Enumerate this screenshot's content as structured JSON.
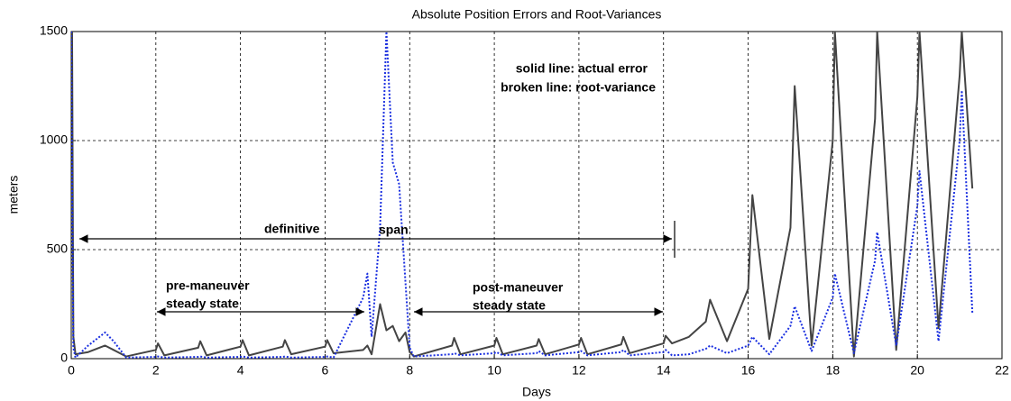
{
  "chart_data": {
    "type": "line",
    "title": "Absolute Position Errors and Root-Variances",
    "x_label": "Days",
    "y_label": "meters",
    "x": [
      0,
      0.02,
      0.05,
      0.1,
      0.4,
      0.8,
      1.0,
      1.3,
      2.0,
      2.05,
      2.2,
      3.0,
      3.05,
      3.2,
      4.0,
      4.05,
      4.2,
      5.0,
      5.05,
      5.2,
      6.0,
      6.05,
      6.2,
      6.9,
      7.0,
      7.1,
      7.3,
      7.45,
      7.6,
      7.75,
      7.9,
      8.0,
      8.1,
      9.0,
      9.05,
      9.2,
      10.0,
      10.05,
      10.2,
      11.0,
      11.05,
      11.2,
      12.0,
      12.05,
      12.2,
      13.0,
      13.05,
      13.2,
      14.0,
      14.05,
      14.2,
      14.6,
      15.0,
      15.1,
      15.5,
      16.0,
      16.1,
      16.5,
      17.0,
      17.1,
      17.5,
      18.0,
      18.05,
      18.5,
      19.0,
      19.05,
      19.5,
      20.0,
      20.05,
      20.5,
      21.0,
      21.05,
      21.3
    ],
    "series": [
      {
        "color": "#444444",
        "dash": false,
        "values": [
          1500,
          1500,
          100,
          20,
          30,
          60,
          40,
          10,
          40,
          70,
          15,
          50,
          80,
          15,
          55,
          85,
          15,
          55,
          85,
          20,
          55,
          85,
          25,
          40,
          60,
          20,
          250,
          130,
          150,
          80,
          120,
          30,
          10,
          60,
          95,
          20,
          60,
          95,
          20,
          60,
          90,
          20,
          65,
          95,
          20,
          65,
          100,
          25,
          70,
          105,
          70,
          100,
          170,
          270,
          80,
          320,
          750,
          90,
          600,
          1250,
          60,
          1000,
          1500,
          10,
          1100,
          1500,
          40,
          1200,
          1500,
          140,
          1300,
          1500,
          780
        ]
      },
      {
        "color": "#1a2fe0",
        "dash": true,
        "values": [
          1500,
          800,
          50,
          5,
          60,
          120,
          80,
          5,
          8,
          10,
          5,
          8,
          10,
          5,
          8,
          10,
          5,
          8,
          10,
          5,
          8,
          10,
          5,
          280,
          390,
          100,
          600,
          1500,
          900,
          800,
          350,
          50,
          10,
          20,
          25,
          15,
          25,
          30,
          15,
          25,
          35,
          15,
          30,
          35,
          15,
          30,
          40,
          15,
          30,
          40,
          15,
          20,
          45,
          60,
          25,
          60,
          100,
          20,
          150,
          240,
          35,
          280,
          390,
          25,
          450,
          580,
          60,
          700,
          860,
          80,
          1000,
          1230,
          210
        ]
      }
    ],
    "xlim": [
      0,
      22
    ],
    "xticks": [
      0,
      2,
      4,
      6,
      8,
      10,
      12,
      14,
      16,
      18,
      20,
      22
    ],
    "ylim": [
      0,
      1500
    ],
    "yticks": [
      0,
      500,
      1000,
      1500
    ],
    "grid": true,
    "annotations": [
      "solid line: actual error",
      "broken line: root-variance",
      "definitive",
      "span",
      "pre-maneuver",
      "steady state",
      "post-maneuver",
      "steady state"
    ]
  }
}
